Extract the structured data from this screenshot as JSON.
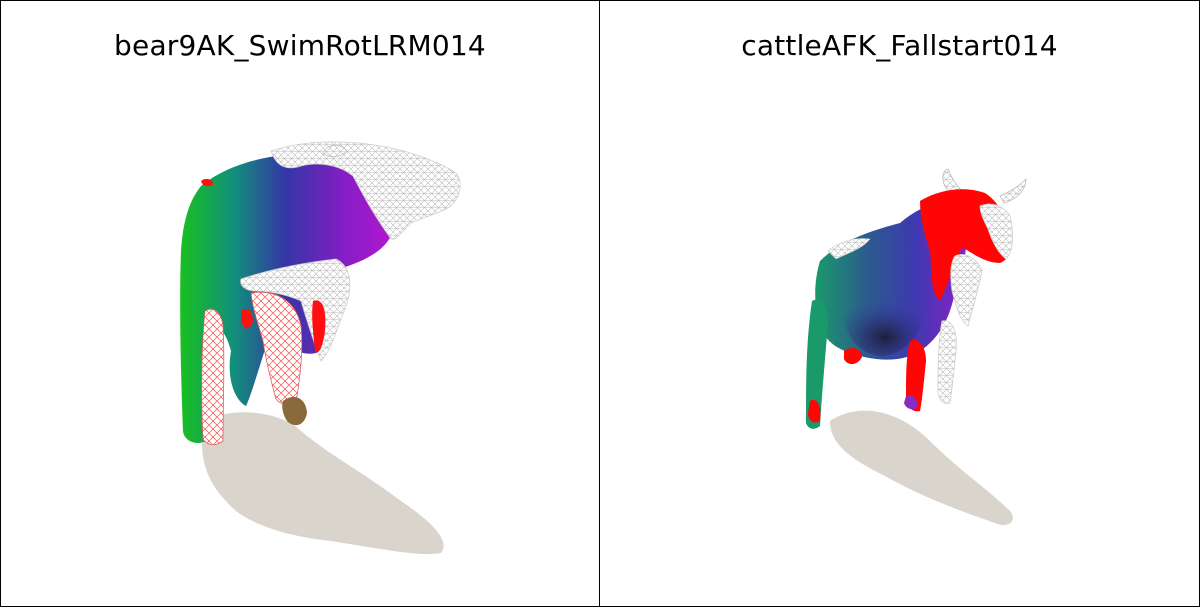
{
  "panels": [
    {
      "title": "bear9AK_SwimRotLRM014",
      "subject": "bear"
    },
    {
      "title": "cattleAFK_Fallstart014",
      "subject": "cattle"
    }
  ],
  "colors": {
    "shadow": "#d9d5cc",
    "wire": "#e8e8e8",
    "green": "#1fbf2a",
    "teal": "#1a8a7a",
    "blue": "#3a3aa8",
    "purple": "#9a18c8",
    "red": "#ff0000",
    "brown": "#8a6a3a"
  }
}
